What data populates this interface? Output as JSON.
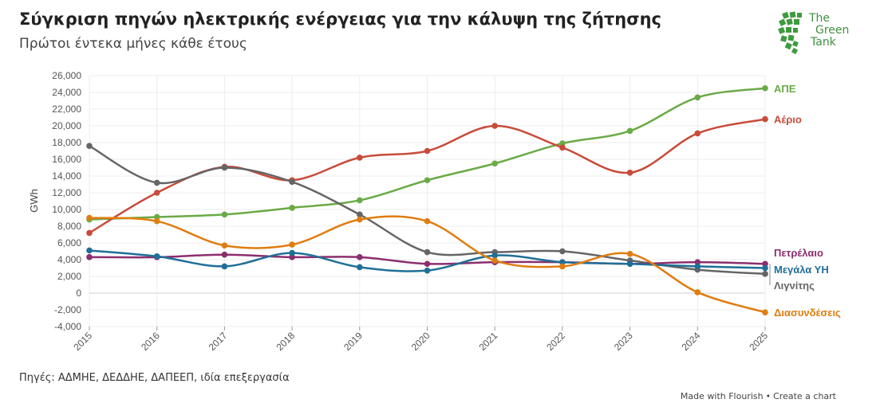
{
  "title": "Σύγκριση πηγών ηλεκτρικής ενέργειας για την κάλυψη της ζήτησης",
  "subtitle": "Πρώτοι έντεκα μήνες κάθε έτους",
  "logo": {
    "line1": "The",
    "line2": "Green",
    "line3": "Tank",
    "color": "#3f9a3f"
  },
  "source": "Πηγές: ΑΔΜΗΕ, ΔΕΔΔΗΕ, ΔΑΠΕΕΠ, ιδία επεξεργασία",
  "credit": {
    "made_with": "Made with Flourish",
    "separator": "•",
    "create": "Create a chart"
  },
  "chart_data": {
    "type": "line",
    "ylabel": "GWh",
    "xlabel": "",
    "ylim": [
      -4000,
      26000
    ],
    "yticks": [
      -4000,
      -2000,
      0,
      2000,
      4000,
      6000,
      8000,
      10000,
      12000,
      14000,
      16000,
      18000,
      20000,
      22000,
      24000,
      26000
    ],
    "ytick_labels": [
      "-4,000",
      "-2,000",
      "0",
      "2,000",
      "4,000",
      "6,000",
      "8,000",
      "10,000",
      "12,000",
      "14,000",
      "16,000",
      "18,000",
      "20,000",
      "22,000",
      "24,000",
      "26,000"
    ],
    "categories": [
      "2015",
      "2016",
      "2017",
      "2018",
      "2019",
      "2020",
      "2021",
      "2022",
      "2023",
      "2024",
      "2025"
    ],
    "grid": true,
    "legend": "right-end-labels",
    "series": [
      {
        "name": "ΑΠΕ",
        "color": "#6aaa46",
        "values": [
          8800,
          9100,
          9400,
          10200,
          11100,
          13500,
          15500,
          17900,
          19400,
          23400,
          24500
        ]
      },
      {
        "name": "Αέριο",
        "color": "#c84b3a",
        "values": [
          7200,
          12000,
          15100,
          13500,
          16200,
          17000,
          20000,
          17400,
          14400,
          19100,
          20800
        ]
      },
      {
        "name": "Λιγνίτης",
        "color": "#656565",
        "values": [
          17600,
          13200,
          15000,
          13300,
          9400,
          4900,
          4900,
          5000,
          3900,
          2800,
          2300
        ]
      },
      {
        "name": "Πετρέλαιο",
        "color": "#8b2e6e",
        "values": [
          4300,
          4300,
          4600,
          4300,
          4300,
          3500,
          3700,
          3700,
          3500,
          3700,
          3500
        ]
      },
      {
        "name": "Μεγάλα ΥΗ",
        "color": "#1f6f96",
        "values": [
          5100,
          4400,
          3200,
          4800,
          3100,
          2700,
          4500,
          3700,
          3500,
          3200,
          3000
        ]
      },
      {
        "name": "Διασυνδέσεις",
        "color": "#e07d10",
        "values": [
          9000,
          8600,
          5700,
          5800,
          8800,
          8600,
          3900,
          3200,
          4700,
          100,
          -2300
        ]
      }
    ]
  }
}
